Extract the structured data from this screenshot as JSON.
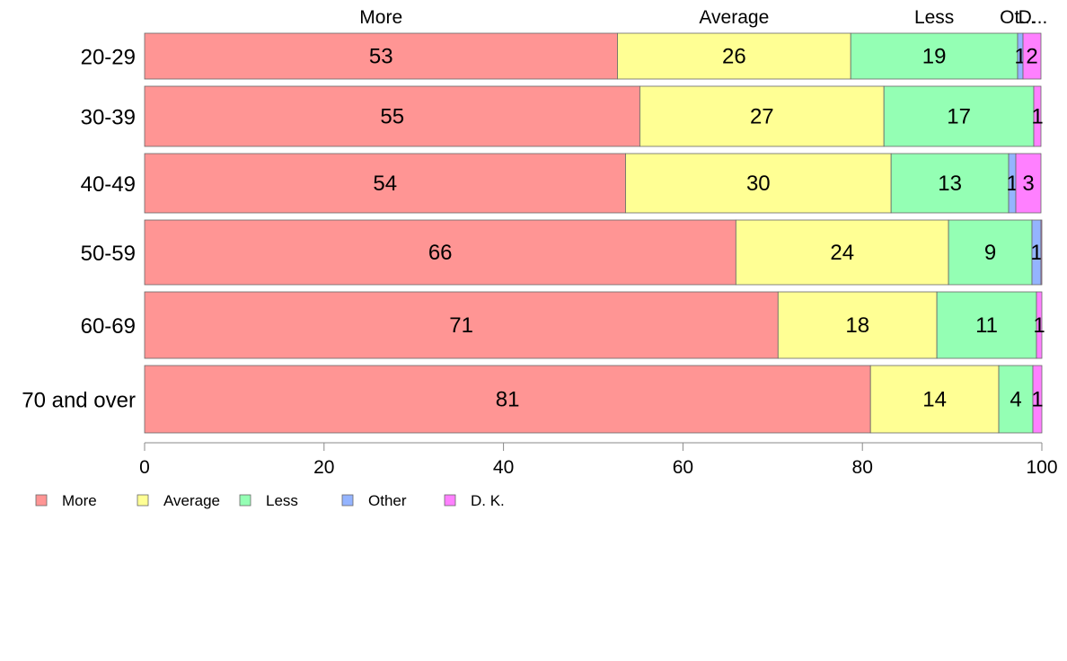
{
  "chart_data": {
    "type": "bar",
    "orientation": "horizontal",
    "stacked": true,
    "title": "",
    "xlabel": "",
    "ylabel": "",
    "xlim": [
      0,
      100
    ],
    "x_ticks": [
      "0",
      "20",
      "40",
      "60",
      "80",
      "100"
    ],
    "grid": false,
    "legend_position": "bottom-left",
    "categories": [
      "20-29",
      "30-39",
      "40-49",
      "50-59",
      "60-69",
      "70 and over"
    ],
    "top_labels": [
      "More",
      "Average",
      "Less",
      "Ot...",
      "D..."
    ],
    "series": [
      {
        "name": "More",
        "color": "#ff9594",
        "values": [
          52.7,
          55.2,
          53.6,
          65.9,
          70.6,
          80.9
        ],
        "labels": [
          "53",
          "55",
          "54",
          "66",
          "71",
          "81"
        ]
      },
      {
        "name": "Average",
        "color": "#ffff94",
        "values": [
          26.0,
          27.2,
          29.6,
          23.7,
          17.7,
          14.3
        ],
        "labels": [
          "26",
          "27",
          "30",
          "24",
          "18",
          "14"
        ]
      },
      {
        "name": "Less",
        "color": "#94ffb4",
        "values": [
          18.6,
          16.7,
          13.1,
          9.3,
          11.1,
          3.8
        ],
        "labels": [
          "19",
          "17",
          "13",
          "9",
          "11",
          "4"
        ]
      },
      {
        "name": "Other",
        "color": "#94b4ff",
        "values": [
          0.6,
          0.0,
          0.8,
          1.0,
          0.0,
          0.0
        ],
        "labels": [
          "1",
          "",
          "1",
          "1",
          "",
          ""
        ]
      },
      {
        "name": "D. K.",
        "color": "#ff80ff",
        "values": [
          2.0,
          0.8,
          2.8,
          0.1,
          0.6,
          1.0
        ],
        "labels": [
          "2",
          "1",
          "3",
          "",
          "1",
          "1"
        ]
      }
    ]
  }
}
